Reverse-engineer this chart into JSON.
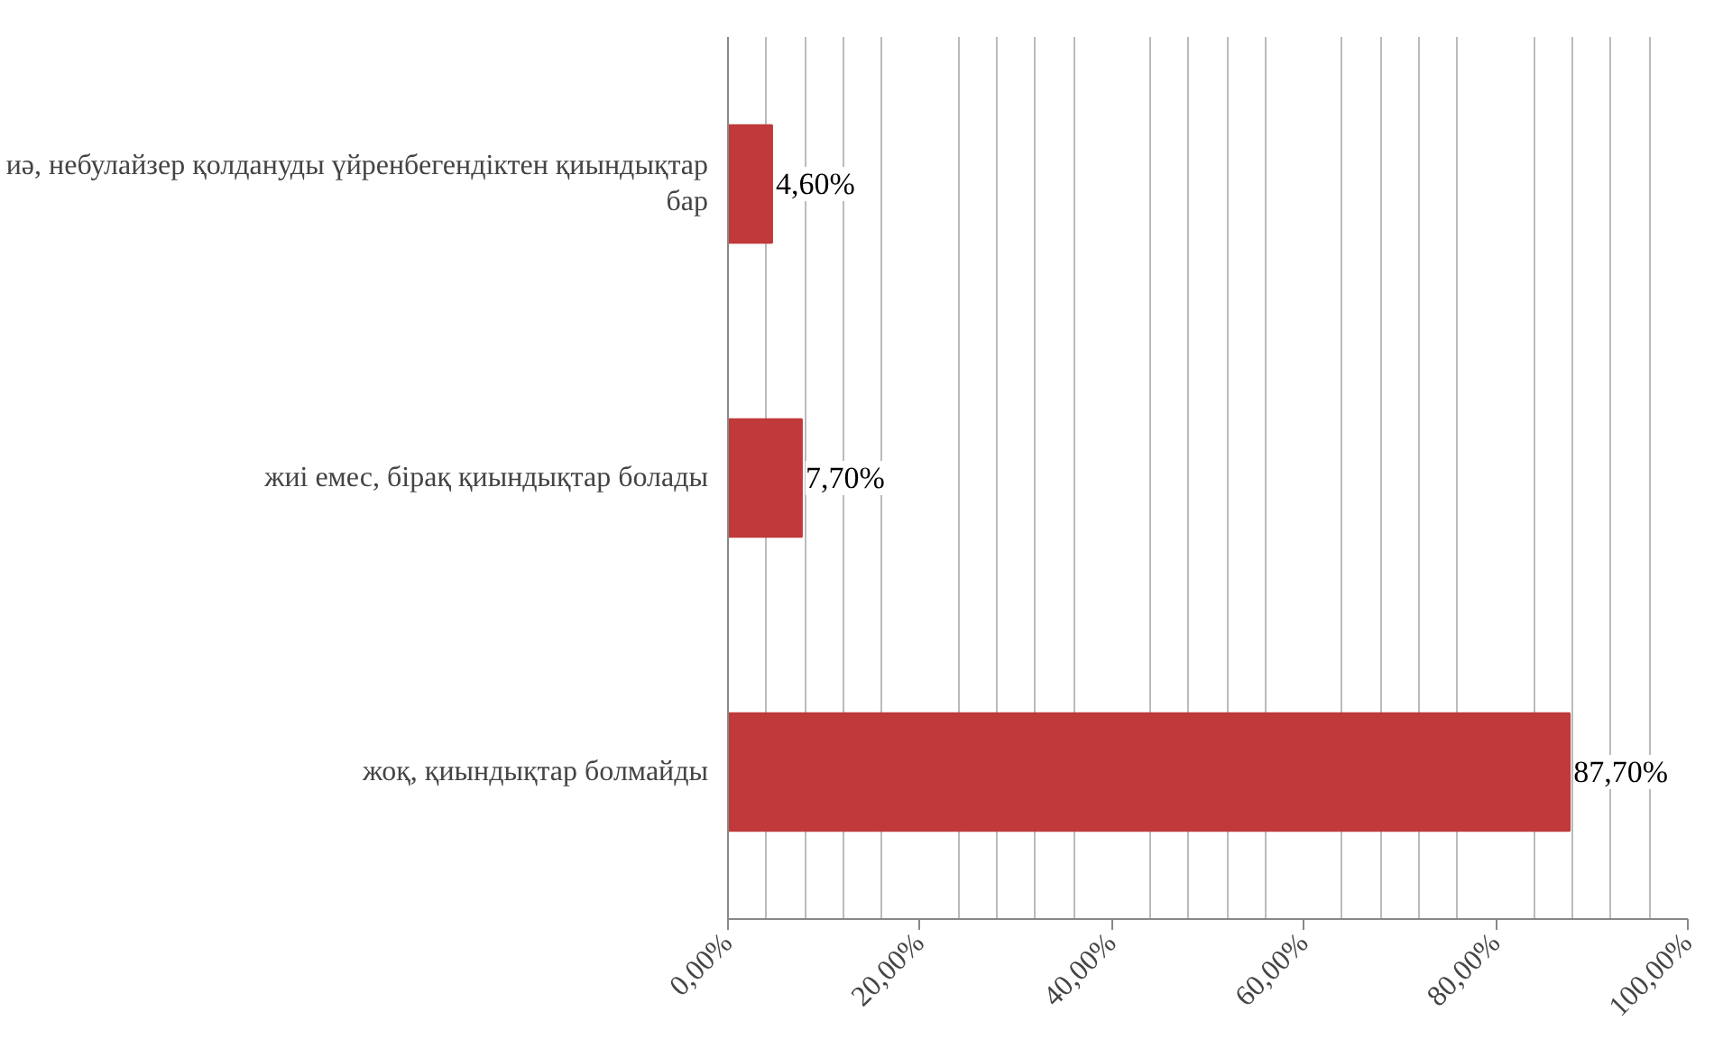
{
  "chart_data": {
    "type": "bar",
    "orientation": "horizontal",
    "categories": [
      "иә, небулайзер қолдануды үйренбегендіктен қиындықтар бар",
      "жиі емес, бірақ қиындықтар болады",
      "жоқ, қиындықтар болмайды"
    ],
    "values": [
      4.6,
      7.7,
      87.7
    ],
    "value_labels": [
      "4,60%",
      "7,70%",
      "87,70%"
    ],
    "color": "#c0393b",
    "xlim": [
      0,
      100
    ],
    "xticks": [
      {
        "value": 0,
        "label": "0,00%"
      },
      {
        "value": 20,
        "label": "20,00%"
      },
      {
        "value": 40,
        "label": "40,00%"
      },
      {
        "value": 60,
        "label": "60,00%"
      },
      {
        "value": 80,
        "label": "80,00%"
      },
      {
        "value": 100,
        "label": "100,00%"
      }
    ],
    "grid": "x"
  }
}
